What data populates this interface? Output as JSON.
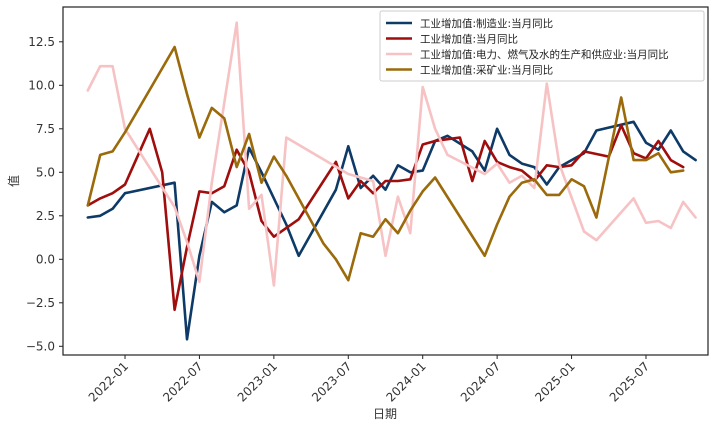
{
  "chart_data": {
    "type": "line",
    "title": "",
    "xlabel": "日期",
    "ylabel": "值",
    "ylim": [
      -5.5,
      14.5
    ],
    "xlim": [
      "2021-08",
      "2025-12"
    ],
    "grid": false,
    "legend_position": "top-right",
    "yticks": [
      -5.0,
      -2.5,
      0.0,
      2.5,
      5.0,
      7.5,
      10.0,
      12.5
    ],
    "ytick_labels": [
      "−5.0",
      "−2.5",
      "0.0",
      "2.5",
      "5.0",
      "7.5",
      "10.0",
      "12.5"
    ],
    "xticks": [
      "2022-01",
      "2022-07",
      "2023-01",
      "2023-07",
      "2024-01",
      "2024-07",
      "2025-01",
      "2025-07"
    ],
    "series": [
      {
        "name": "工业增加值:制造业:当月同比",
        "color": "#0d3a66",
        "points": [
          [
            "2021-10",
            2.4
          ],
          [
            "2021-11",
            2.5
          ],
          [
            "2021-12",
            2.9
          ],
          [
            "2022-01",
            3.8
          ],
          [
            "2022-05",
            4.4
          ],
          [
            "2022-06",
            -4.6
          ],
          [
            "2022-07",
            0.2
          ],
          [
            "2022-08",
            3.3
          ],
          [
            "2022-09",
            2.7
          ],
          [
            "2022-10",
            3.1
          ],
          [
            "2022-11",
            6.4
          ],
          [
            "2022-12",
            5.0
          ],
          [
            "2023-02",
            2.0
          ],
          [
            "2023-03",
            0.2
          ],
          [
            "2023-06",
            4.0
          ],
          [
            "2023-07",
            6.5
          ],
          [
            "2023-08",
            4.1
          ],
          [
            "2023-09",
            4.8
          ],
          [
            "2023-10",
            4.0
          ],
          [
            "2023-11",
            5.4
          ],
          [
            "2023-12",
            5.0
          ],
          [
            "2024-01",
            5.1
          ],
          [
            "2024-02",
            6.8
          ],
          [
            "2024-03",
            7.1
          ],
          [
            "2024-05",
            6.2
          ],
          [
            "2024-06",
            5.1
          ],
          [
            "2024-07",
            7.5
          ],
          [
            "2024-08",
            6.0
          ],
          [
            "2024-09",
            5.5
          ],
          [
            "2024-10",
            5.3
          ],
          [
            "2024-11",
            4.3
          ],
          [
            "2024-12",
            5.3
          ],
          [
            "2025-01",
            5.7
          ],
          [
            "2025-02",
            6.1
          ],
          [
            "2025-03",
            7.4
          ],
          [
            "2025-06",
            7.9
          ],
          [
            "2025-07",
            6.7
          ],
          [
            "2025-08",
            6.3
          ],
          [
            "2025-09",
            7.4
          ],
          [
            "2025-10",
            6.2
          ],
          [
            "2025-11",
            5.7
          ]
        ]
      },
      {
        "name": "工业增加值:当月同比",
        "color": "#a00d0d",
        "points": [
          [
            "2021-10",
            3.1
          ],
          [
            "2021-11",
            3.5
          ],
          [
            "2021-12",
            3.8
          ],
          [
            "2022-01",
            4.3
          ],
          [
            "2022-03",
            7.5
          ],
          [
            "2022-04",
            5.0
          ],
          [
            "2022-05",
            -2.9
          ],
          [
            "2022-06",
            0.7
          ],
          [
            "2022-07",
            3.9
          ],
          [
            "2022-08",
            3.8
          ],
          [
            "2022-09",
            4.2
          ],
          [
            "2022-10",
            6.3
          ],
          [
            "2022-11",
            5.0
          ],
          [
            "2022-12",
            2.2
          ],
          [
            "2023-01",
            1.3
          ],
          [
            "2023-03",
            2.3
          ],
          [
            "2023-05",
            4.5
          ],
          [
            "2023-06",
            5.6
          ],
          [
            "2023-07",
            3.5
          ],
          [
            "2023-08",
            4.5
          ],
          [
            "2023-09",
            3.8
          ],
          [
            "2023-10",
            4.5
          ],
          [
            "2023-11",
            4.5
          ],
          [
            "2023-12",
            4.6
          ],
          [
            "2024-01",
            6.6
          ],
          [
            "2024-02",
            6.8
          ],
          [
            "2024-03",
            6.9
          ],
          [
            "2024-04",
            7.0
          ],
          [
            "2024-05",
            4.5
          ],
          [
            "2024-06",
            6.8
          ],
          [
            "2024-07",
            5.6
          ],
          [
            "2024-08",
            5.3
          ],
          [
            "2024-09",
            5.1
          ],
          [
            "2024-10",
            4.5
          ],
          [
            "2024-11",
            5.4
          ],
          [
            "2024-12",
            5.3
          ],
          [
            "2025-01",
            5.4
          ],
          [
            "2025-02",
            6.2
          ],
          [
            "2025-04",
            5.9
          ],
          [
            "2025-05",
            7.7
          ],
          [
            "2025-06",
            6.1
          ],
          [
            "2025-07",
            5.8
          ],
          [
            "2025-08",
            6.8
          ],
          [
            "2025-09",
            5.7
          ],
          [
            "2025-10",
            5.3
          ]
        ]
      },
      {
        "name": "工业增加值:电力、燃气及水的生产和供应业:当月同比",
        "color": "#f7c2c4",
        "points": [
          [
            "2021-10",
            9.7
          ],
          [
            "2021-11",
            11.1
          ],
          [
            "2021-12",
            11.1
          ],
          [
            "2022-01",
            7.5
          ],
          [
            "2022-05",
            3.0
          ],
          [
            "2022-06",
            1.0
          ],
          [
            "2022-07",
            -1.3
          ],
          [
            "2022-08",
            4.4
          ],
          [
            "2022-09",
            9.0
          ],
          [
            "2022-10",
            13.6
          ],
          [
            "2022-11",
            2.9
          ],
          [
            "2022-12",
            3.7
          ],
          [
            "2023-01",
            -1.5
          ],
          [
            "2023-02",
            7.0
          ],
          [
            "2023-07",
            4.9
          ],
          [
            "2023-08",
            4.7
          ],
          [
            "2023-09",
            4.5
          ],
          [
            "2023-10",
            0.2
          ],
          [
            "2023-11",
            3.6
          ],
          [
            "2023-12",
            1.5
          ],
          [
            "2024-01",
            9.9
          ],
          [
            "2024-02",
            7.5
          ],
          [
            "2024-03",
            6.0
          ],
          [
            "2024-06",
            4.9
          ],
          [
            "2024-07",
            5.5
          ],
          [
            "2024-08",
            4.4
          ],
          [
            "2024-09",
            4.8
          ],
          [
            "2024-10",
            4.1
          ],
          [
            "2024-11",
            10.1
          ],
          [
            "2024-12",
            5.5
          ],
          [
            "2025-02",
            1.6
          ],
          [
            "2025-03",
            1.1
          ],
          [
            "2025-06",
            3.5
          ],
          [
            "2025-07",
            2.1
          ],
          [
            "2025-08",
            2.2
          ],
          [
            "2025-09",
            1.8
          ],
          [
            "2025-10",
            3.3
          ],
          [
            "2025-11",
            2.4
          ]
        ]
      },
      {
        "name": "工业增加值:采矿业:当月同比",
        "color": "#9a6a0b",
        "points": [
          [
            "2021-10",
            3.1
          ],
          [
            "2021-11",
            6.0
          ],
          [
            "2021-12",
            6.2
          ],
          [
            "2022-01",
            7.3
          ],
          [
            "2022-05",
            12.2
          ],
          [
            "2022-06",
            9.5
          ],
          [
            "2022-07",
            7.0
          ],
          [
            "2022-08",
            8.7
          ],
          [
            "2022-09",
            8.1
          ],
          [
            "2022-10",
            5.3
          ],
          [
            "2022-11",
            7.2
          ],
          [
            "2022-12",
            4.4
          ],
          [
            "2023-01",
            5.9
          ],
          [
            "2023-02",
            4.8
          ],
          [
            "2023-05",
            0.9
          ],
          [
            "2023-06",
            0.0
          ],
          [
            "2023-07",
            -1.2
          ],
          [
            "2023-08",
            1.5
          ],
          [
            "2023-09",
            1.3
          ],
          [
            "2023-10",
            2.3
          ],
          [
            "2023-11",
            1.5
          ],
          [
            "2023-12",
            2.8
          ],
          [
            "2024-01",
            3.9
          ],
          [
            "2024-02",
            4.7
          ],
          [
            "2024-06",
            0.2
          ],
          [
            "2024-07",
            2.0
          ],
          [
            "2024-08",
            3.6
          ],
          [
            "2024-09",
            4.4
          ],
          [
            "2024-10",
            4.6
          ],
          [
            "2024-11",
            3.7
          ],
          [
            "2024-12",
            3.7
          ],
          [
            "2025-01",
            4.6
          ],
          [
            "2025-02",
            4.2
          ],
          [
            "2025-03",
            2.4
          ],
          [
            "2025-05",
            9.3
          ],
          [
            "2025-06",
            5.7
          ],
          [
            "2025-07",
            5.7
          ],
          [
            "2025-08",
            6.1
          ],
          [
            "2025-09",
            5.0
          ],
          [
            "2025-10",
            5.1
          ]
        ]
      }
    ]
  }
}
